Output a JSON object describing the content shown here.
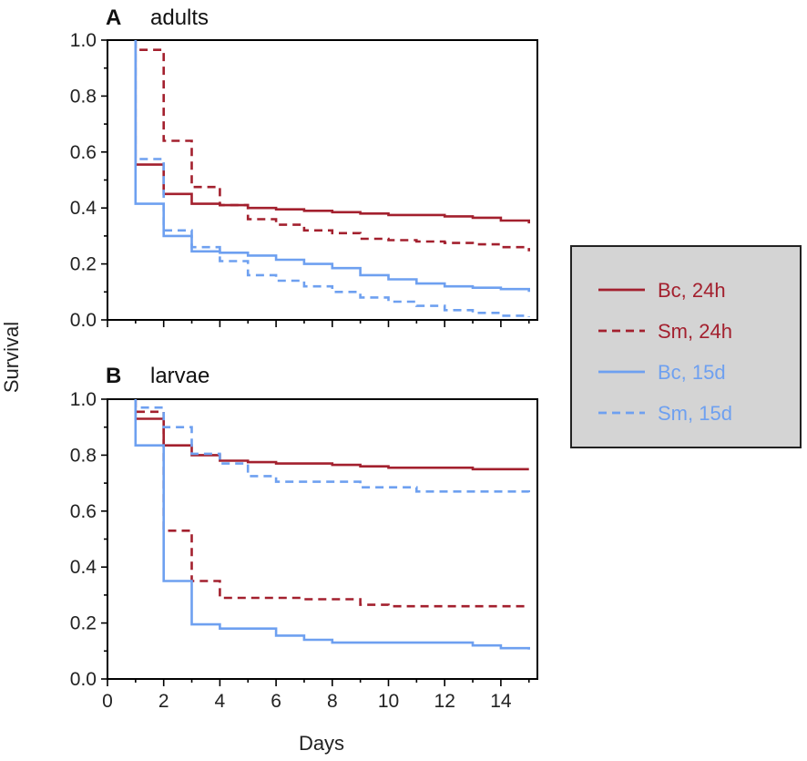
{
  "figure": {
    "y_axis_label": "Survival",
    "x_axis_label": "Days"
  },
  "legend": {
    "items": [
      {
        "label": "Bc, 24h",
        "color": "#a3202e",
        "style": "solid"
      },
      {
        "label": "Sm, 24h",
        "color": "#a3202e",
        "style": "dashed"
      },
      {
        "label": "Bc, 15d",
        "color": "#6ea0f0",
        "style": "solid"
      },
      {
        "label": "Sm, 15d",
        "color": "#6ea0f0",
        "style": "dashed"
      }
    ]
  },
  "chart_data": [
    {
      "type": "line",
      "step": true,
      "panel": "A",
      "title": "adults",
      "xlabel": "",
      "ylabel": "Survival",
      "xlim": [
        0,
        15.3
      ],
      "ylim": [
        0,
        1.0
      ],
      "x_ticks": [
        0,
        2,
        4,
        6,
        8,
        10,
        12,
        14
      ],
      "y_ticks": [
        "0.0",
        "0.2",
        "0.4",
        "0.6",
        "0.8",
        "1.0"
      ],
      "show_x_tick_labels": false,
      "series": [
        {
          "name": "Bc, 24h",
          "color": "#a3202e",
          "style": "solid",
          "x": [
            1,
            1,
            2,
            2,
            3,
            4,
            5,
            6,
            7,
            8,
            9,
            10,
            11,
            12,
            13,
            14,
            15
          ],
          "y": [
            1.0,
            0.555,
            0.555,
            0.45,
            0.415,
            0.41,
            0.4,
            0.395,
            0.39,
            0.385,
            0.38,
            0.375,
            0.375,
            0.37,
            0.365,
            0.355,
            0.345
          ]
        },
        {
          "name": "Sm, 24h",
          "color": "#a3202e",
          "style": "dashed",
          "x": [
            1,
            1,
            2,
            2,
            3,
            3.6,
            4,
            5,
            6,
            7,
            8,
            9,
            10,
            11,
            12,
            13,
            14,
            15
          ],
          "y": [
            1.0,
            0.965,
            0.965,
            0.64,
            0.475,
            0.475,
            0.41,
            0.36,
            0.34,
            0.32,
            0.31,
            0.29,
            0.285,
            0.28,
            0.275,
            0.27,
            0.26,
            0.245
          ]
        },
        {
          "name": "Bc, 15d",
          "color": "#6ea0f0",
          "style": "solid",
          "x": [
            1,
            1,
            2,
            2,
            3,
            4,
            5,
            6,
            7,
            8,
            9,
            10,
            11,
            12,
            13,
            14,
            15
          ],
          "y": [
            1.0,
            0.415,
            0.415,
            0.3,
            0.245,
            0.24,
            0.23,
            0.215,
            0.2,
            0.185,
            0.16,
            0.145,
            0.13,
            0.12,
            0.115,
            0.11,
            0.1
          ]
        },
        {
          "name": "Sm, 15d",
          "color": "#6ea0f0",
          "style": "dashed",
          "x": [
            1,
            1,
            2,
            2,
            3,
            4,
            5,
            6,
            7,
            8,
            9,
            10,
            11,
            12,
            13,
            14,
            15
          ],
          "y": [
            1.0,
            0.575,
            0.575,
            0.32,
            0.26,
            0.21,
            0.16,
            0.14,
            0.12,
            0.1,
            0.08,
            0.065,
            0.05,
            0.035,
            0.025,
            0.015,
            0.01
          ]
        }
      ]
    },
    {
      "type": "line",
      "step": true,
      "panel": "B",
      "title": "larvae",
      "xlabel": "Days",
      "ylabel": "Survival",
      "xlim": [
        0,
        15.3
      ],
      "ylim": [
        0,
        1.0
      ],
      "x_ticks": [
        0,
        2,
        4,
        6,
        8,
        10,
        12,
        14
      ],
      "x_tick_labels": [
        "0",
        "2",
        "4",
        "6",
        "8",
        "10",
        "12",
        "14"
      ],
      "y_ticks": [
        "0.0",
        "0.2",
        "0.4",
        "0.6",
        "0.8",
        "1.0"
      ],
      "show_x_tick_labels": true,
      "series": [
        {
          "name": "Bc, 24h",
          "color": "#a3202e",
          "style": "solid",
          "x": [
            1,
            1,
            2,
            3,
            4,
            5,
            6,
            7,
            8,
            9,
            10,
            11,
            12,
            13,
            14,
            15
          ],
          "y": [
            1.0,
            0.93,
            0.835,
            0.8,
            0.78,
            0.775,
            0.77,
            0.77,
            0.765,
            0.76,
            0.755,
            0.755,
            0.755,
            0.75,
            0.75,
            0.75
          ]
        },
        {
          "name": "Sm, 24h",
          "color": "#a3202e",
          "style": "dashed",
          "x": [
            1,
            1,
            2,
            3,
            4,
            5,
            6,
            7,
            8,
            9,
            10,
            11,
            12,
            13,
            14,
            15
          ],
          "y": [
            1.0,
            0.955,
            0.53,
            0.35,
            0.29,
            0.29,
            0.29,
            0.285,
            0.285,
            0.265,
            0.26,
            0.26,
            0.26,
            0.26,
            0.26,
            0.26
          ]
        },
        {
          "name": "Bc, 15d",
          "color": "#6ea0f0",
          "style": "solid",
          "x": [
            1,
            1,
            2,
            3,
            4,
            5,
            6,
            7,
            8,
            9,
            10,
            11,
            12,
            13,
            14,
            15
          ],
          "y": [
            1.0,
            0.835,
            0.35,
            0.195,
            0.18,
            0.18,
            0.155,
            0.14,
            0.13,
            0.13,
            0.13,
            0.13,
            0.13,
            0.12,
            0.11,
            0.105
          ]
        },
        {
          "name": "Sm, 15d",
          "color": "#6ea0f0",
          "style": "dashed",
          "x": [
            1,
            1,
            2,
            3,
            4,
            5,
            6,
            7,
            8,
            9,
            10,
            11,
            12,
            13,
            14,
            15
          ],
          "y": [
            1.0,
            0.97,
            0.9,
            0.805,
            0.77,
            0.725,
            0.705,
            0.705,
            0.705,
            0.685,
            0.685,
            0.67,
            0.67,
            0.67,
            0.67,
            0.655
          ]
        }
      ]
    }
  ]
}
